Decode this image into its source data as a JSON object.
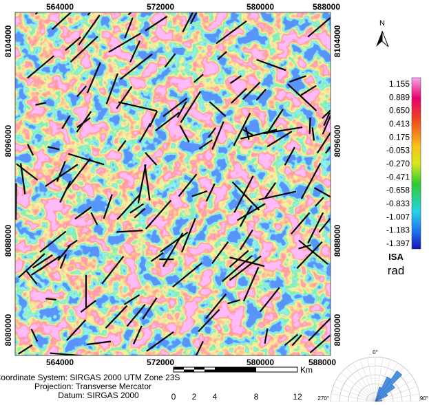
{
  "map": {
    "x_labels": [
      "564000",
      "572000",
      "580000",
      "588000"
    ],
    "y_labels": [
      "8104000",
      "8096000",
      "8088000",
      "8080000"
    ]
  },
  "north": "N",
  "legend": {
    "values": [
      "1.155",
      "0.889",
      "0.650",
      "0.413",
      "0.175",
      "-0.053",
      "-0.270",
      "-0.471",
      "-0.658",
      "-0.833",
      "-1.007",
      "-1.183",
      "-1.397"
    ],
    "title": "ISA",
    "unit": "rad"
  },
  "footer": {
    "coordinate_system": "Coordinate System: SIRGAS 2000 UTM Zone 23S",
    "projection": "Projection: Transverse Mercator",
    "datum": "Datum: SIRGAS 2000"
  },
  "scale_bar": {
    "ticks": [
      "0",
      "2",
      "4",
      "8",
      "12"
    ],
    "unit": "Km"
  },
  "rose": {
    "labels": [
      "0°",
      "270°",
      "90°"
    ]
  }
}
